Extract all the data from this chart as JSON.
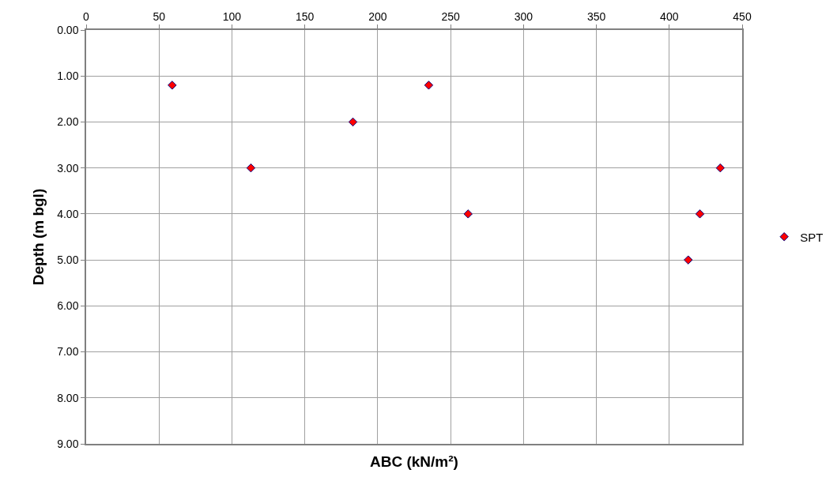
{
  "chart_data": {
    "type": "scatter",
    "xlabel": "ABC (kN/m²)",
    "ylabel": "Depth (m bgl)",
    "x": [
      59,
      113,
      183,
      235,
      262,
      435,
      421,
      413
    ],
    "series": [
      {
        "name": "SPT",
        "color": "#ff0000",
        "values": [
          1.2,
          3.0,
          2.0,
          1.2,
          4.0,
          3.0,
          4.0,
          5.0
        ]
      }
    ],
    "xlim": [
      0,
      450
    ],
    "xticks": [
      0,
      50,
      100,
      150,
      200,
      250,
      300,
      350,
      400,
      450
    ],
    "ylim": [
      9,
      0
    ],
    "yticks": [
      {
        "value": 0,
        "label": "0.00"
      },
      {
        "value": 1,
        "label": "1.00"
      },
      {
        "value": 2,
        "label": "2.00"
      },
      {
        "value": 3,
        "label": "3.00"
      },
      {
        "value": 4,
        "label": "4.00"
      },
      {
        "value": 5,
        "label": "5.00"
      },
      {
        "value": 6,
        "label": "6.00"
      },
      {
        "value": 7,
        "label": "7.00"
      },
      {
        "value": 8,
        "label": "8.00"
      },
      {
        "value": 9,
        "label": "9.00"
      }
    ],
    "grid": true,
    "legend": "right",
    "marker": "diamond"
  }
}
